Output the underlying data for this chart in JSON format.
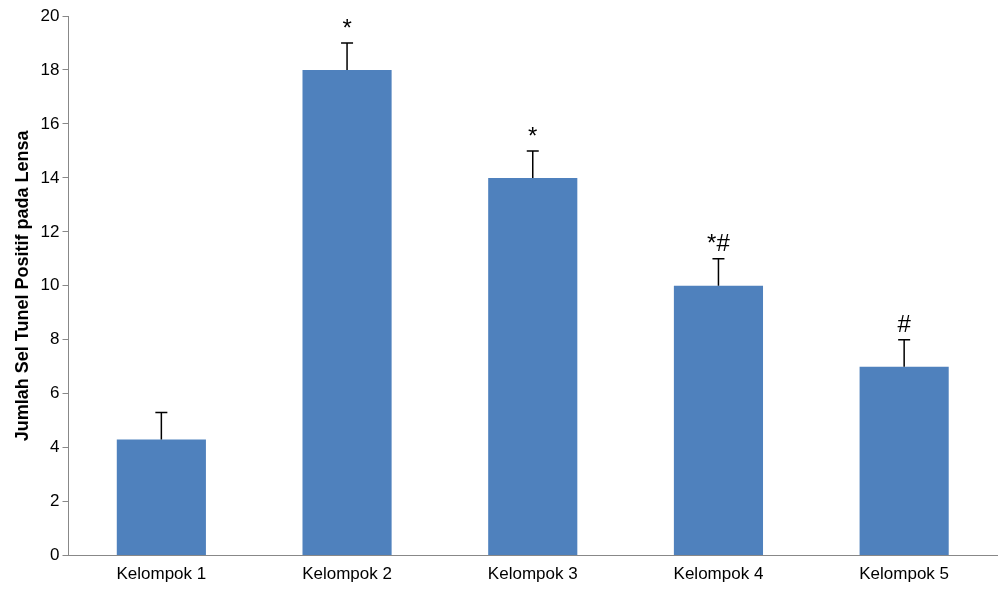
{
  "chart_data": {
    "type": "bar",
    "ylabel": "Jumlah Sel Tunel Positif pada Lensa",
    "categories": [
      "Kelompok 1",
      "Kelompok 2",
      "Kelompok 3",
      "Kelompok 4",
      "Kelompok 5"
    ],
    "values": [
      4.3,
      18,
      14,
      10,
      7
    ],
    "color": "#4f81bd",
    "errors": [
      [
        4.3,
        5.3
      ],
      [
        18,
        19
      ],
      [
        14,
        15
      ],
      [
        10,
        11
      ],
      [
        7,
        8
      ]
    ],
    "ylim": [
      0,
      20
    ],
    "yticks": [
      0,
      2,
      4,
      6,
      8,
      10,
      12,
      14,
      16,
      18,
      20
    ],
    "grid": false,
    "legend": false,
    "annotations": [
      {
        "text": "*",
        "x": "Kelompok 2",
        "y": 19
      },
      {
        "text": "*",
        "x": "Kelompok 3",
        "y": 15
      },
      {
        "text": "*#",
        "x": "Kelompok 4",
        "y": 11
      },
      {
        "text": "#",
        "x": "Kelompok 5",
        "y": 8
      }
    ]
  }
}
